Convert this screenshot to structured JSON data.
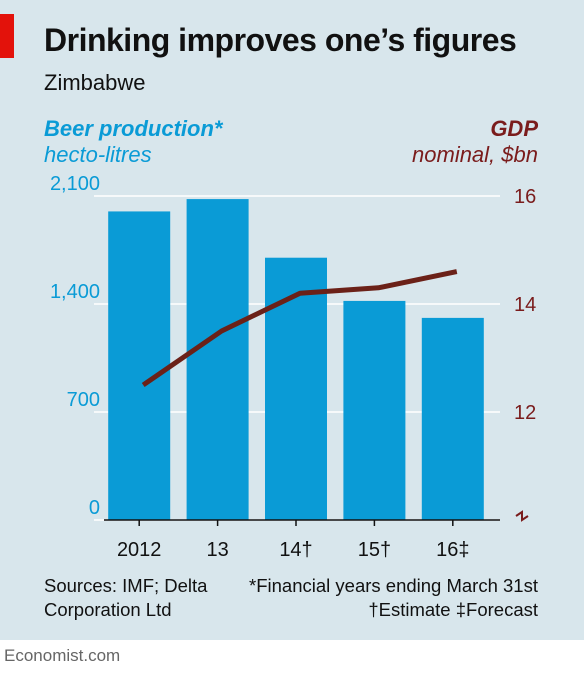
{
  "header": {
    "title": "Drinking improves one’s figures",
    "subtitle": "Zimbabwe"
  },
  "axes": {
    "left_title": "Beer production*",
    "left_unit": "hecto-litres",
    "right_title": "GDP",
    "right_unit": "nominal, $bn"
  },
  "footer": {
    "sources_line1": "Sources: IMF; Delta",
    "sources_line2": "Corporation Ltd",
    "note_line1": "*Financial years ending March 31st",
    "note_line2": "†Estimate  ‡Forecast",
    "brand": "Economist.com"
  },
  "colors": {
    "bars": "#0a9bd6",
    "line": "#6b2118",
    "panel": "#d8e6ec",
    "left_axis_text": "#0a9bd6",
    "right_axis_text": "#7a1c1c",
    "accent_flag": "#e3120b"
  },
  "chart_data": {
    "type": "bar",
    "categories": [
      "2012",
      "13",
      "14†",
      "15†",
      "16‡"
    ],
    "series": [
      {
        "name": "Beer production*",
        "kind": "bar",
        "axis": "left",
        "values": [
          2000,
          2080,
          1700,
          1420,
          1310
        ]
      },
      {
        "name": "GDP",
        "kind": "line",
        "axis": "right",
        "values": [
          12.5,
          13.5,
          14.2,
          14.3,
          14.6
        ]
      }
    ],
    "left_axis": {
      "ylim": [
        0,
        2100
      ],
      "ticks": [
        0,
        700,
        1400,
        2100
      ],
      "tick_labels": [
        "0",
        "700",
        "1,400",
        "2,100"
      ]
    },
    "right_axis": {
      "ylim": [
        10,
        16
      ],
      "ticks": [
        12,
        14,
        16
      ],
      "tick_labels": [
        "12",
        "14",
        "16"
      ],
      "broken": true
    },
    "grid": true
  }
}
